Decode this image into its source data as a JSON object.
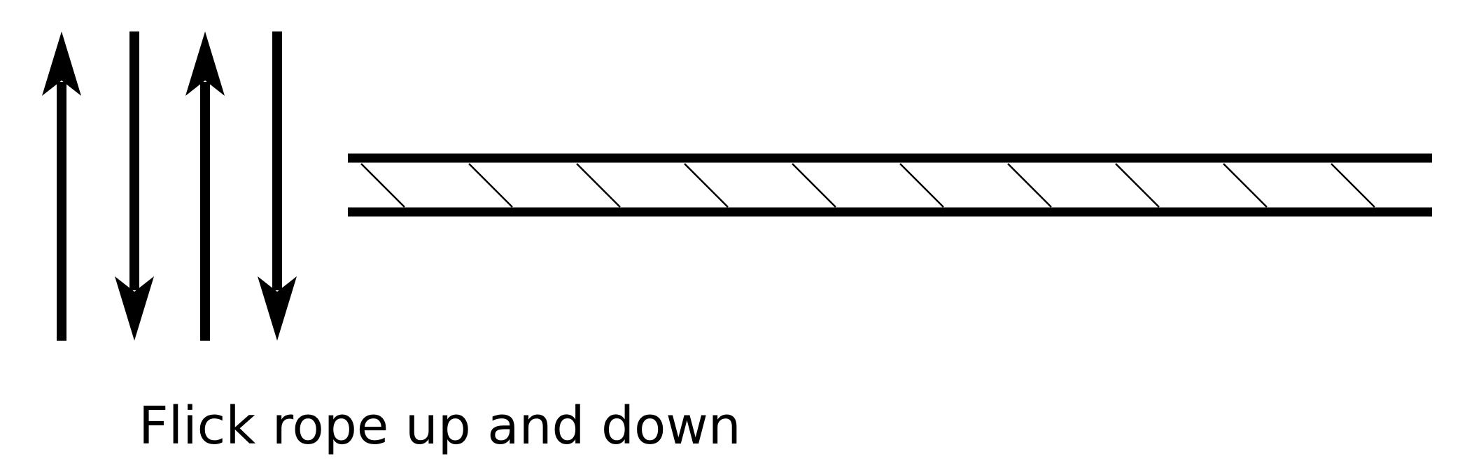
{
  "caption": "Flick rope up and down",
  "arrows": [
    "up",
    "down",
    "up",
    "down"
  ],
  "rope": {
    "hatch_count": 10
  },
  "colors": {
    "stroke": "#000000",
    "background": "#ffffff"
  }
}
